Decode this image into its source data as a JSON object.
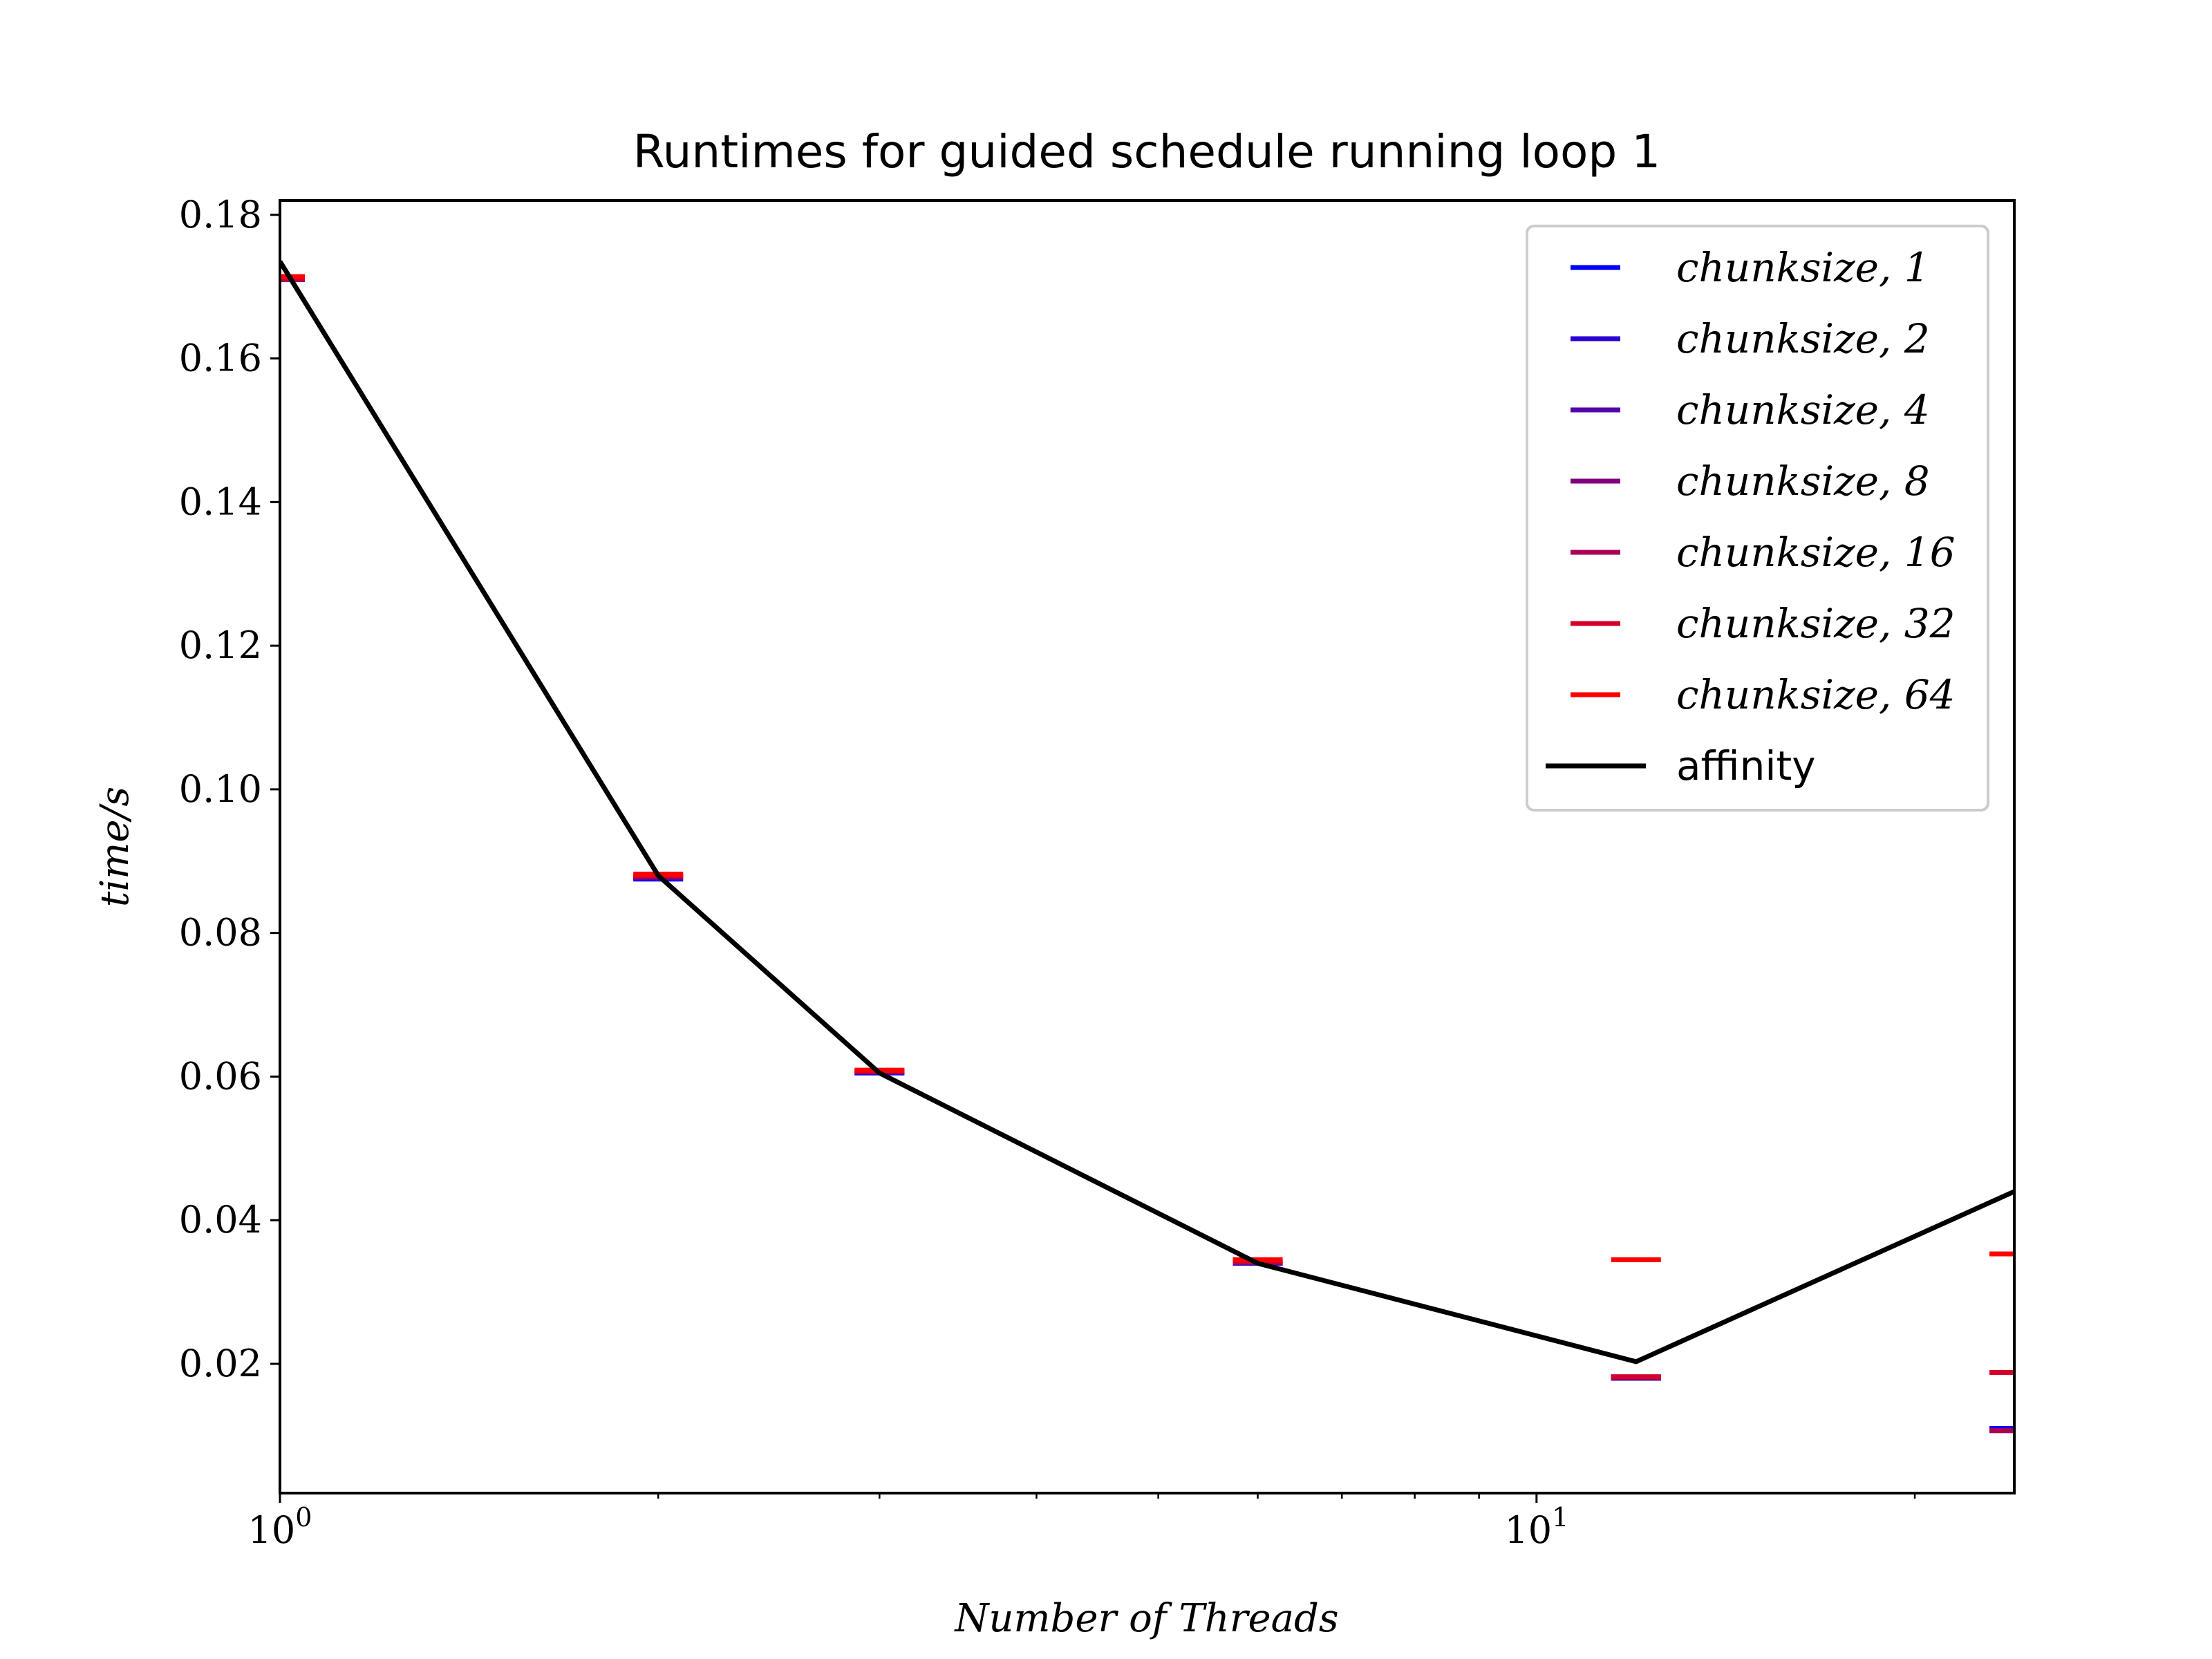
{
  "chart_data": {
    "type": "scatter",
    "title": "Runtimes for guided schedule running loop 1",
    "xlabel": "Number of Threads",
    "ylabel": "time/s",
    "xscale": "log",
    "xlim": [
      1,
      24
    ],
    "ylim": [
      0.002,
      0.182
    ],
    "x_ticks": [
      {
        "value": 1,
        "base": "10",
        "exp": "0"
      },
      {
        "value": 10,
        "base": "10",
        "exp": "1"
      }
    ],
    "y_ticks": [
      "0.02",
      "0.04",
      "0.06",
      "0.08",
      "0.10",
      "0.12",
      "0.14",
      "0.16",
      "0.18"
    ],
    "legend_position": "top-right",
    "grid": false,
    "marker": "hline",
    "series": [
      {
        "name": "chunksize, 1",
        "color": "#0000ff",
        "x": [
          1,
          2,
          3,
          6,
          12,
          24
        ],
        "y": [
          0.171,
          0.0875,
          0.0605,
          0.034,
          0.018,
          0.011
        ]
      },
      {
        "name": "chunksize, 2",
        "color": "#2a00d5",
        "x": [
          1,
          2,
          3,
          6,
          12,
          24
        ],
        "y": [
          0.171,
          0.0876,
          0.0606,
          0.034,
          0.018,
          0.0108
        ]
      },
      {
        "name": "chunksize, 4",
        "color": "#5500aa",
        "x": [
          1,
          2,
          3,
          6,
          12,
          24
        ],
        "y": [
          0.171,
          0.0877,
          0.0606,
          0.0341,
          0.018,
          0.0107
        ]
      },
      {
        "name": "chunksize, 8",
        "color": "#800080",
        "x": [
          1,
          2,
          3,
          6,
          12,
          24
        ],
        "y": [
          0.171,
          0.0878,
          0.0607,
          0.0341,
          0.0181,
          0.0107
        ]
      },
      {
        "name": "chunksize, 16",
        "color": "#aa0055",
        "x": [
          1,
          2,
          3,
          6,
          12,
          24
        ],
        "y": [
          0.171,
          0.0879,
          0.0607,
          0.0342,
          0.0182,
          0.0107
        ]
      },
      {
        "name": "chunksize, 32",
        "color": "#d5002a",
        "x": [
          1,
          2,
          3,
          6,
          12,
          24
        ],
        "y": [
          0.1712,
          0.088,
          0.0608,
          0.0343,
          0.0182,
          0.0188
        ]
      },
      {
        "name": "chunksize, 64",
        "color": "#ff0000",
        "x": [
          1,
          2,
          3,
          6,
          12,
          24
        ],
        "y": [
          0.1714,
          0.0882,
          0.0609,
          0.0345,
          0.0345,
          0.0353
        ]
      }
    ],
    "line_series": {
      "name": "affinity",
      "color": "#000000",
      "x": [
        1,
        2,
        3,
        6,
        12,
        24
      ],
      "y": [
        0.1735,
        0.088,
        0.0605,
        0.034,
        0.0203,
        0.044
      ]
    }
  }
}
